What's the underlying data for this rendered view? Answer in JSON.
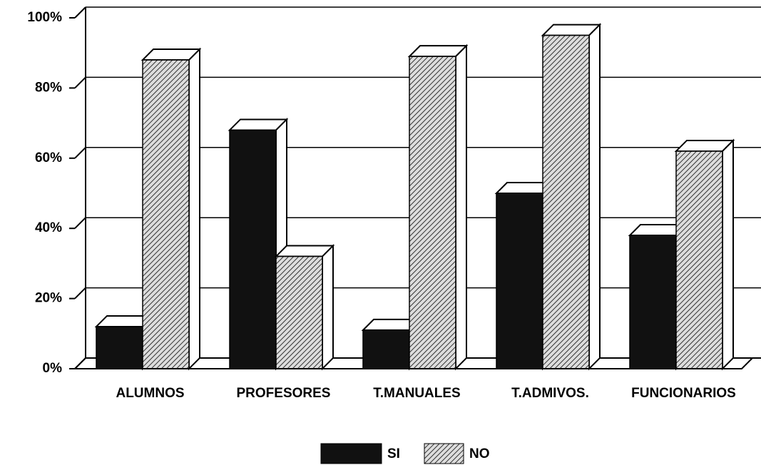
{
  "chart_data": {
    "type": "bar3d",
    "categories": [
      "ALUMNOS",
      "PROFESORES",
      "T.MANUALES",
      "T.ADMIVOS.",
      "FUNCIONARIOS"
    ],
    "series": [
      {
        "name": "SI",
        "color": "#111111",
        "values": [
          12,
          68,
          11,
          50,
          38
        ]
      },
      {
        "name": "NO",
        "color": "#777777",
        "values": [
          88,
          32,
          89,
          95,
          62
        ]
      }
    ],
    "ylim": [
      0,
      100
    ],
    "yticks": [
      {
        "value": 0,
        "label": "0%"
      },
      {
        "value": 20,
        "label": "20%"
      },
      {
        "value": 40,
        "label": "40%"
      },
      {
        "value": 60,
        "label": "60%"
      },
      {
        "value": 80,
        "label": "80%"
      },
      {
        "value": 100,
        "label": "100%"
      }
    ],
    "grid": true
  }
}
